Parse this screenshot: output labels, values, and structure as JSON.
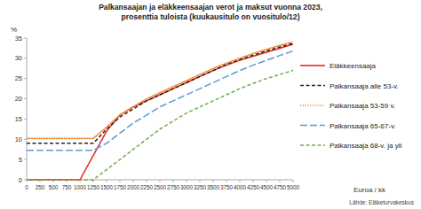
{
  "chart_data": {
    "type": "line",
    "title": [
      "Palkansaajan ja eläkkeensaajan verot ja maksut vuonna 2023,",
      "prosenttia tuloista (kuukausitulo on vuositulo/12)"
    ],
    "y_label": "%",
    "x_label": "Euroa / kk",
    "source": "Lähde: Eläketurvakeskus",
    "x": [
      0,
      250,
      500,
      750,
      1000,
      1250,
      1500,
      1750,
      2000,
      2250,
      2500,
      2750,
      3000,
      3250,
      3500,
      3750,
      4000,
      4250,
      4500,
      4750,
      5000
    ],
    "series": [
      {
        "name": "Eläkkeensaaja",
        "color": "#e32a22",
        "line_style": "solid",
        "values": [
          0,
          0,
          0,
          0,
          0,
          6,
          12,
          16,
          18,
          19.5,
          21,
          22.5,
          24,
          25.5,
          27,
          28.3,
          29.5,
          30.5,
          31.5,
          32.5,
          33.5
        ]
      },
      {
        "name": "Palkansaaja alle 53-v.",
        "color": "#222222",
        "line_style": "dashed",
        "values": [
          9,
          9,
          9,
          9,
          9,
          9,
          12.5,
          15.5,
          17.5,
          19.5,
          21,
          22.5,
          24,
          25.5,
          27,
          28.5,
          29.7,
          30.8,
          31.8,
          32.8,
          33.7
        ]
      },
      {
        "name": "Palkansaaja 53-59 v.",
        "color": "#f0862a",
        "line_style": "dotted",
        "values": [
          10.2,
          10.2,
          10.2,
          10.2,
          10.2,
          10.2,
          13,
          16,
          18,
          20,
          21.5,
          23,
          24.5,
          26,
          27.5,
          28.8,
          30,
          31.2,
          32.2,
          33.2,
          34
        ]
      },
      {
        "name": "Palkansaaja 65-67-v.",
        "color": "#5b9bd5",
        "line_style": "longdash",
        "values": [
          7.3,
          7.3,
          7.3,
          7.3,
          7.3,
          7.3,
          9,
          11.5,
          14,
          16,
          18,
          19.5,
          21,
          22.5,
          24,
          25.5,
          27,
          28.3,
          29.5,
          30.7,
          31.8
        ]
      },
      {
        "name": "Palkansaaja 68-v. ja yli",
        "color": "#70ad47",
        "line_style": "dashed",
        "values": [
          0,
          0,
          0,
          0,
          0,
          0,
          2.5,
          5,
          7.5,
          10,
          12.5,
          14.5,
          16.5,
          18,
          19.5,
          21,
          22.5,
          23.8,
          25,
          26,
          27
        ]
      }
    ],
    "xlim": [
      0,
      5000
    ],
    "ylim": [
      0,
      35
    ],
    "xticks": [
      0,
      250,
      500,
      750,
      1000,
      1250,
      1500,
      1750,
      2000,
      2250,
      2500,
      2750,
      3000,
      3250,
      3500,
      3750,
      4000,
      4250,
      4500,
      4750,
      5000
    ],
    "yticks": [
      0,
      5,
      10,
      15,
      20,
      25,
      30,
      35
    ],
    "grid": false,
    "legend": "right"
  }
}
